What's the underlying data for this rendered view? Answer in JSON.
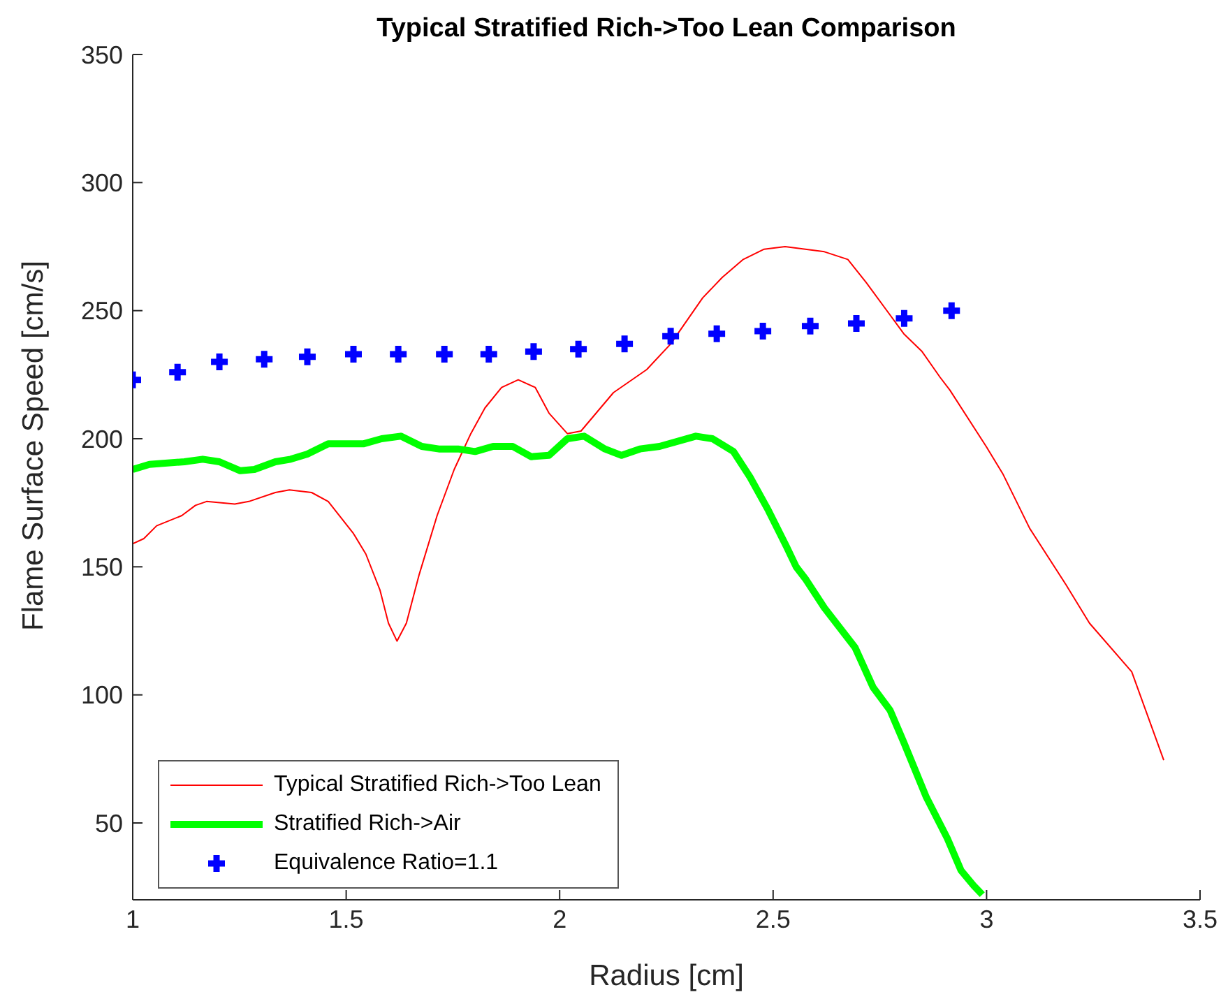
{
  "chart_data": {
    "type": "line",
    "title": "Typical Stratified Rich->Too Lean Comparison",
    "xlabel": "Radius [cm]",
    "ylabel": "Flame Surface Speed [cm/s]",
    "xlim": [
      1,
      3.5
    ],
    "xticks": [
      1,
      1.5,
      2,
      2.5,
      3,
      3.5
    ],
    "ylim": [
      20,
      350
    ],
    "yticks": [
      50,
      100,
      150,
      200,
      250,
      300,
      350
    ],
    "grid": false,
    "legend": "bottom left",
    "series": [
      {
        "name": "Typical Stratified Rich->Too Lean",
        "color": "#ff0000",
        "marker": "none",
        "line_style": "solid",
        "x": [
          1.0,
          1.026,
          1.056,
          1.115,
          1.147,
          1.173,
          1.239,
          1.272,
          1.334,
          1.367,
          1.419,
          1.458,
          1.517,
          1.546,
          1.579,
          1.599,
          1.619,
          1.641,
          1.671,
          1.713,
          1.753,
          1.792,
          1.825,
          1.864,
          1.903,
          1.943,
          1.975,
          2.018,
          2.05,
          2.126,
          2.204,
          2.26,
          2.335,
          2.381,
          2.43,
          2.479,
          2.528,
          2.62,
          2.675,
          2.718,
          2.806,
          2.849,
          2.891,
          2.914,
          2.999,
          3.039,
          3.101,
          3.186,
          3.241,
          3.34,
          3.415
        ],
        "values": [
          159,
          161,
          166,
          170,
          174,
          175.5,
          174.5,
          175.5,
          179,
          180,
          179,
          175.5,
          163,
          155,
          141,
          128,
          121,
          128,
          147,
          170,
          188,
          202,
          212,
          220,
          223,
          220,
          210,
          202,
          203,
          218,
          227,
          237,
          255,
          263,
          270,
          274,
          275,
          273,
          270,
          261,
          241,
          234,
          224,
          219,
          197,
          186,
          165,
          143,
          128,
          109,
          74.5
        ]
      },
      {
        "name": "Stratified Rich->Air",
        "color": "#00ff00",
        "marker": "none",
        "line_style": "solid",
        "x": [
          1.0,
          1.039,
          1.121,
          1.164,
          1.203,
          1.252,
          1.285,
          1.334,
          1.37,
          1.409,
          1.458,
          1.497,
          1.54,
          1.583,
          1.628,
          1.677,
          1.717,
          1.762,
          1.802,
          1.844,
          1.89,
          1.933,
          1.975,
          2.018,
          2.057,
          2.106,
          2.145,
          2.188,
          2.234,
          2.319,
          2.358,
          2.407,
          2.446,
          2.489,
          2.531,
          2.554,
          2.577,
          2.62,
          2.692,
          2.734,
          2.774,
          2.806,
          2.859,
          2.908,
          2.94,
          2.97,
          2.99
        ],
        "values": [
          188,
          190,
          191,
          192,
          191,
          187.5,
          188,
          191,
          192,
          194,
          198,
          198,
          198,
          200,
          201,
          197,
          196,
          196,
          195,
          197,
          197,
          193,
          193.5,
          200,
          201,
          196,
          193.5,
          196,
          197,
          201,
          200,
          195,
          185,
          172,
          158,
          150,
          145,
          134,
          118.5,
          103,
          94,
          81.5,
          60,
          44,
          31.5,
          25.5,
          22
        ]
      },
      {
        "name": "Equivalence Ratio=1.1",
        "color": "#0000ff",
        "type": "scatter",
        "marker": "cross",
        "x": [
          1.0,
          1.105,
          1.203,
          1.308,
          1.409,
          1.517,
          1.622,
          1.73,
          1.834,
          1.939,
          2.044,
          2.152,
          2.26,
          2.368,
          2.476,
          2.587,
          2.695,
          2.807,
          2.918
        ],
        "values": [
          223,
          226,
          230,
          231,
          232,
          233,
          233,
          233,
          233,
          234,
          235,
          237,
          240,
          241,
          242,
          244,
          245,
          247,
          250
        ]
      }
    ]
  }
}
